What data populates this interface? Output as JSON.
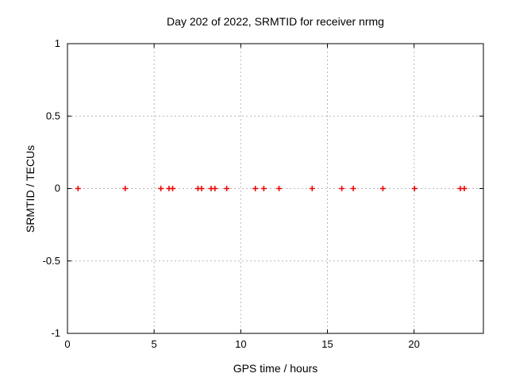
{
  "chart_data": {
    "type": "scatter",
    "title": "Day 202 of 2022, SRMTID for receiver nrmg",
    "xlabel": "GPS time / hours",
    "ylabel": "SRMTID / TECUs",
    "xlim": [
      0,
      24
    ],
    "ylim": [
      -1,
      1
    ],
    "xticks": [
      0,
      5,
      10,
      15,
      20
    ],
    "xtick_labels": [
      "0",
      "5",
      "10",
      "15",
      "20"
    ],
    "yticks": [
      1,
      0.5,
      0,
      -0.5,
      -1
    ],
    "ytick_labels": [
      "1",
      "0.5",
      "0",
      "-0.5",
      "-1"
    ],
    "grid": true,
    "legend": false,
    "marker": "plus",
    "colors": {
      "marker": "#ee0000",
      "grid": "#b8b8b8",
      "axis": "#000000",
      "text": "#000000",
      "background": "#ffffff"
    },
    "series": [
      {
        "name": "SRMTID",
        "x": [
          0.61,
          3.33,
          5.39,
          5.86,
          6.07,
          7.53,
          7.74,
          8.29,
          8.51,
          9.19,
          10.84,
          11.33,
          12.21,
          14.12,
          15.83,
          16.49,
          18.2,
          20.03,
          22.67,
          22.9
        ],
        "y": [
          0,
          0,
          0,
          0,
          0,
          0,
          0,
          0,
          0,
          0,
          0,
          0,
          0,
          0,
          0,
          0,
          0,
          0,
          0,
          0
        ]
      }
    ]
  }
}
